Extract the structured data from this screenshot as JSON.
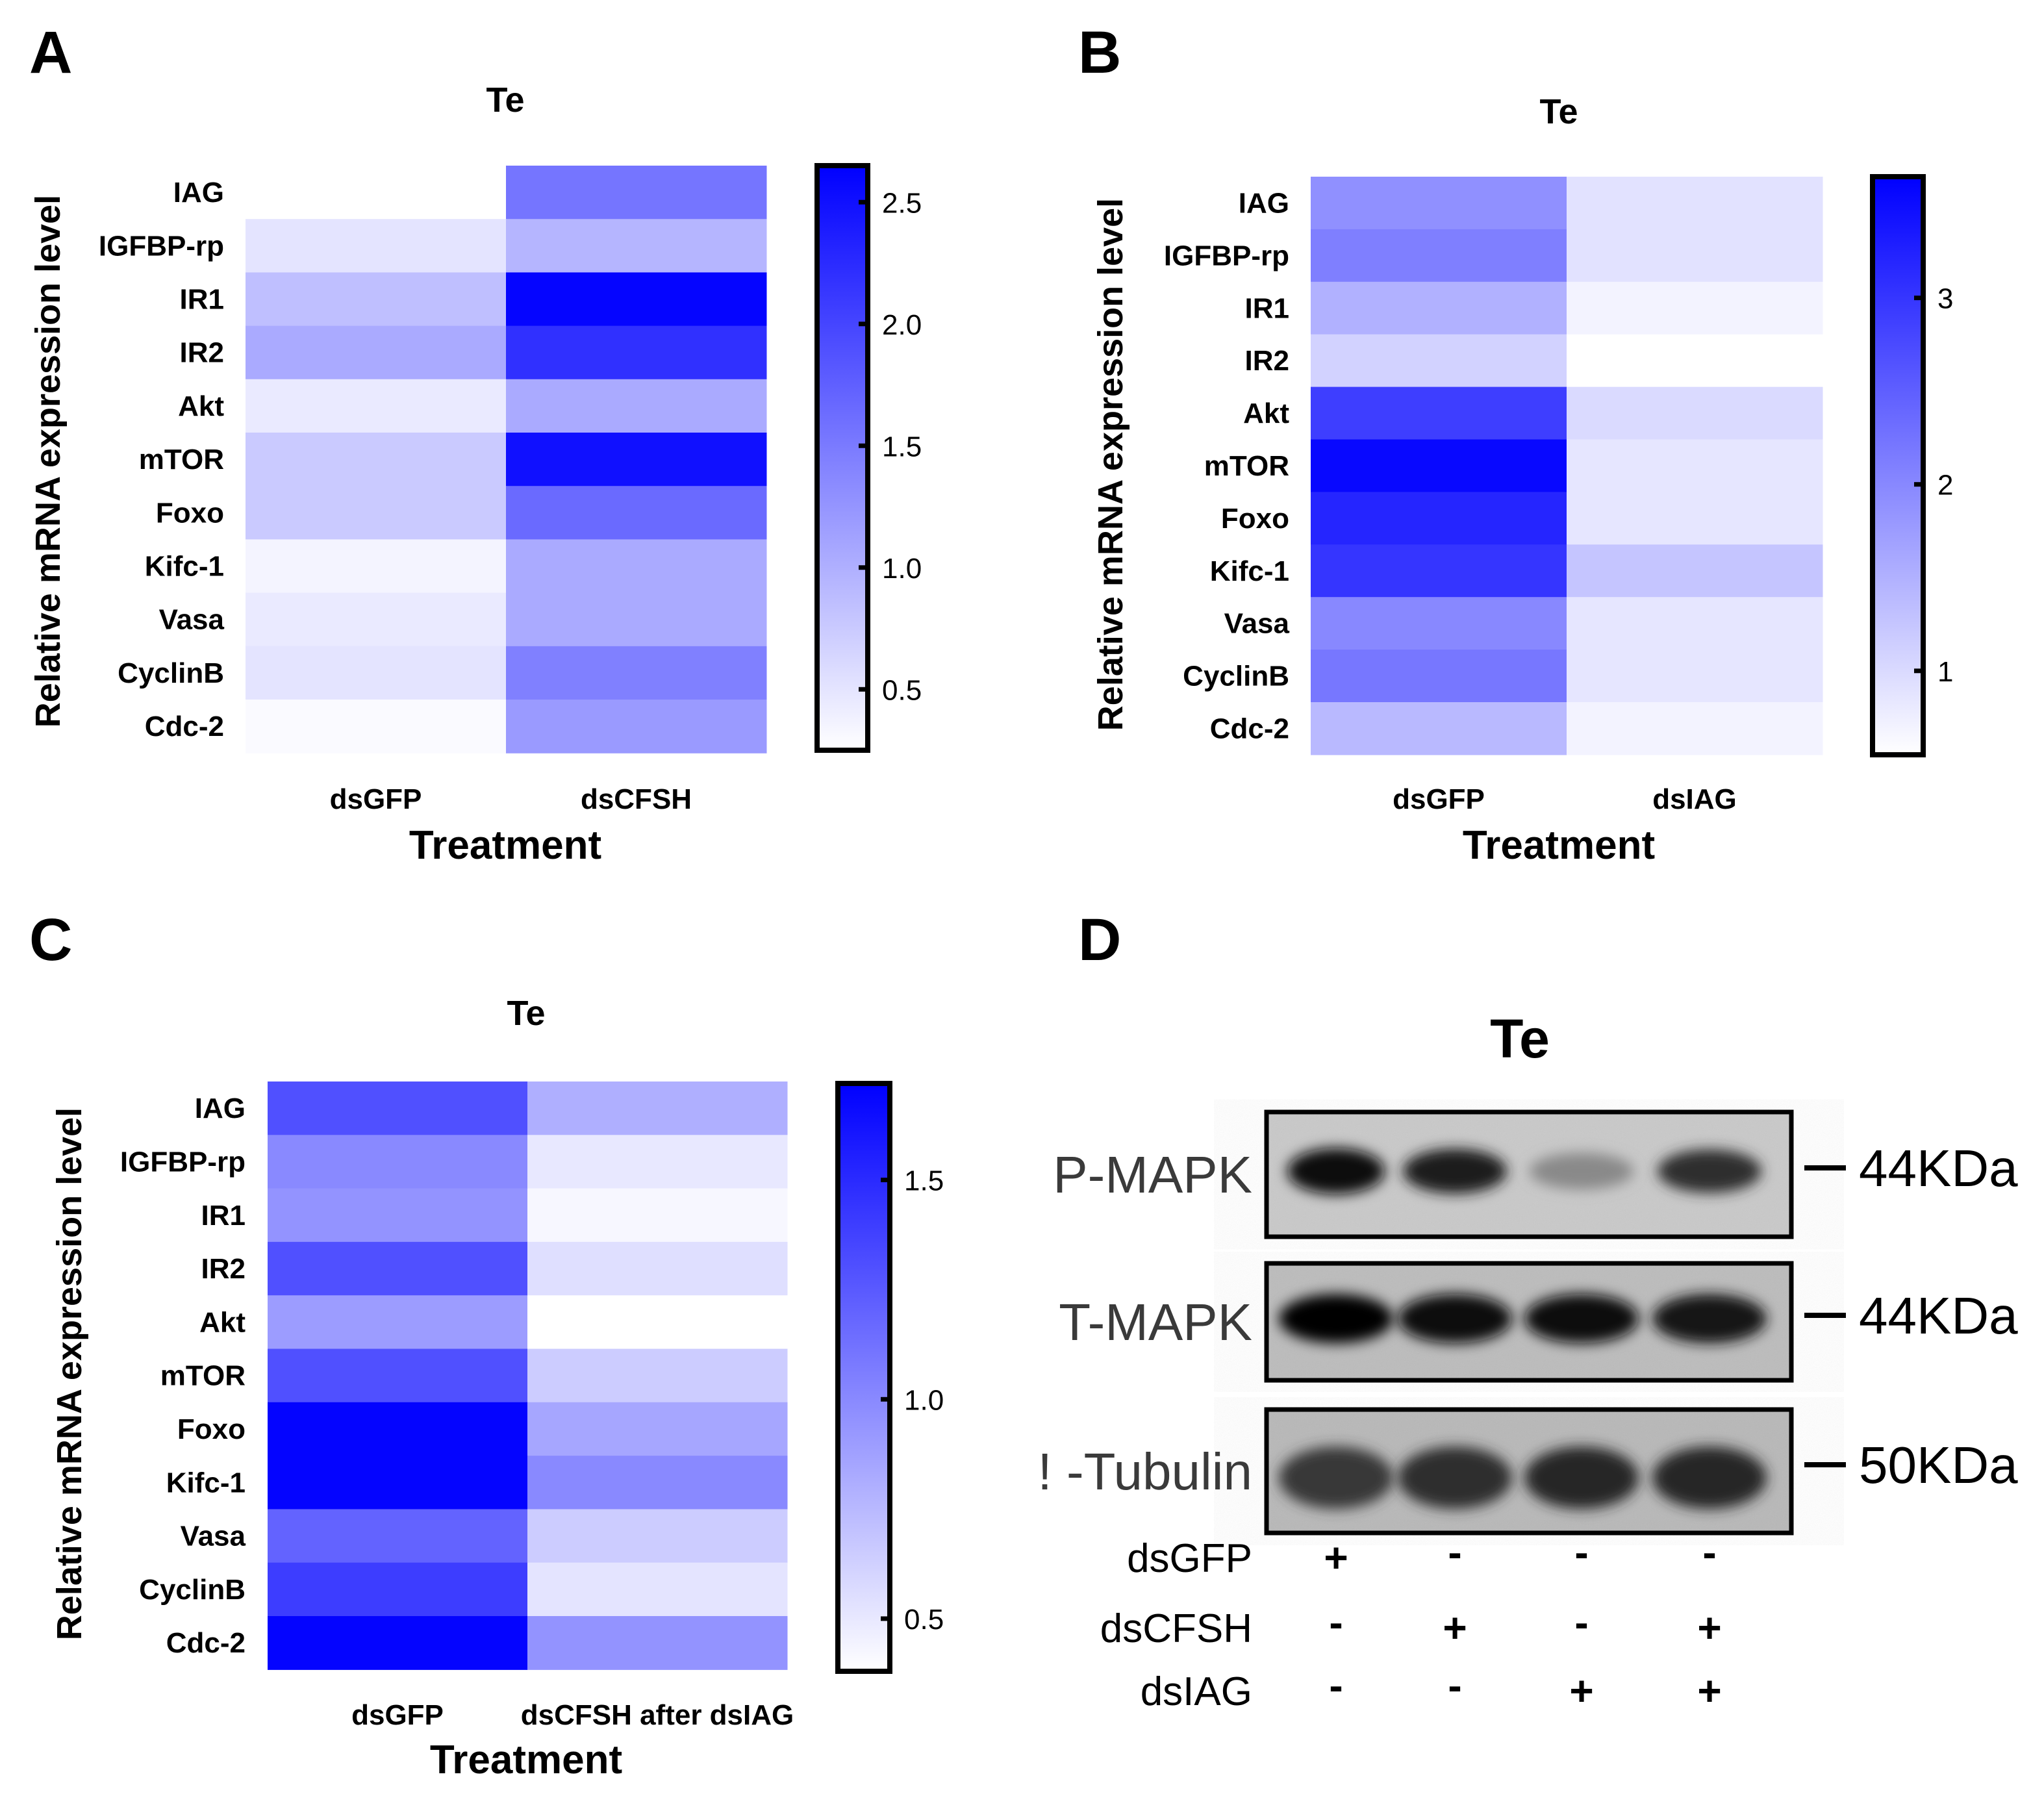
{
  "chart_data": [
    {
      "type": "heatmap",
      "panel": "A",
      "title": "Te",
      "xlabel": "Treatment",
      "ylabel": "Relative mRNA expression level",
      "categories": [
        "dsGFP",
        "dsCFSH"
      ],
      "genes": [
        "IAG",
        "IGFBP-rp",
        "IR1",
        "IR2",
        "Akt",
        "mTOR",
        "Foxo",
        "Kifc-1",
        "Vasa",
        "CyclinB",
        "Cdc-2"
      ],
      "values": [
        [
          0.2,
          1.55
        ],
        [
          0.5,
          0.95
        ],
        [
          0.85,
          2.6
        ],
        [
          1.05,
          2.2
        ],
        [
          0.45,
          1.05
        ],
        [
          0.75,
          2.5
        ],
        [
          0.75,
          1.65
        ],
        [
          0.35,
          1.05
        ],
        [
          0.45,
          1.05
        ],
        [
          0.5,
          1.45
        ],
        [
          0.3,
          1.2
        ]
      ],
      "colorbar": {
        "min": 0.25,
        "max": 2.65,
        "ticks": [
          "0.5",
          "1.0",
          "1.5",
          "2.0",
          "2.5"
        ],
        "tick_values": [
          0.5,
          1.0,
          1.5,
          2.0,
          2.5
        ]
      }
    },
    {
      "type": "heatmap",
      "panel": "B",
      "title": "Te",
      "xlabel": "Treatment",
      "ylabel": "Relative mRNA expression level",
      "categories": [
        "dsGFP",
        "dsIAG"
      ],
      "genes": [
        "IAG",
        "IGFBP-rp",
        "IR1",
        "IR2",
        "Akt",
        "mTOR",
        "Foxo",
        "Kifc-1",
        "Vasa",
        "CyclinB",
        "Cdc-2"
      ],
      "values": [
        [
          1.9,
          0.9
        ],
        [
          2.1,
          0.9
        ],
        [
          1.5,
          0.7
        ],
        [
          1.1,
          0.55
        ],
        [
          2.9,
          1.0
        ],
        [
          3.55,
          0.85
        ],
        [
          3.2,
          0.85
        ],
        [
          3.0,
          1.25
        ],
        [
          2.0,
          0.85
        ],
        [
          2.2,
          0.85
        ],
        [
          1.4,
          0.7
        ]
      ],
      "colorbar": {
        "min": 0.55,
        "max": 3.65,
        "ticks": [
          "1",
          "2",
          "3"
        ],
        "tick_values": [
          1,
          2,
          3
        ]
      }
    },
    {
      "type": "heatmap",
      "panel": "C",
      "title": "Te",
      "xlabel": "Treatment",
      "ylabel": "Relative mRNA expression level",
      "categories": [
        "dsGFP",
        "dsCFSH after dsIAG"
      ],
      "genes": [
        "IAG",
        "IGFBP-rp",
        "IR1",
        "IR2",
        "Akt",
        "mTOR",
        "Foxo",
        "Kifc-1",
        "Vasa",
        "CyclinB",
        "Cdc-2"
      ],
      "values": [
        [
          1.3,
          0.8
        ],
        [
          1.0,
          0.5
        ],
        [
          0.95,
          0.42
        ],
        [
          1.3,
          0.55
        ],
        [
          0.9,
          0.38
        ],
        [
          1.3,
          0.65
        ],
        [
          1.7,
          0.85
        ],
        [
          1.7,
          1.0
        ],
        [
          1.2,
          0.65
        ],
        [
          1.4,
          0.52
        ],
        [
          1.7,
          0.95
        ]
      ],
      "colorbar": {
        "min": 0.38,
        "max": 1.72,
        "ticks": [
          "0.5",
          "1.0",
          "1.5"
        ],
        "tick_values": [
          0.5,
          1.0,
          1.5
        ]
      }
    }
  ],
  "panels": {
    "A": {
      "letter": "A",
      "title": "Te",
      "x_title": "Treatment",
      "y_title": "Relative mRNA expression level"
    },
    "B": {
      "letter": "B",
      "title": "Te",
      "x_title": "Treatment",
      "y_title": "Relative mRNA expression level"
    },
    "C": {
      "letter": "C",
      "title": "Te",
      "x_title": "Treatment",
      "y_title": "Relative mRNA expression level"
    },
    "D": {
      "letter": "D",
      "title": "Te",
      "blots": [
        {
          "protein": "P-MAPK",
          "size": "44KDa",
          "band_intensity": [
            0.95,
            0.85,
            0.2,
            0.75
          ]
        },
        {
          "protein": "T-MAPK",
          "size": "44KDa",
          "band_intensity": [
            1.0,
            0.95,
            0.95,
            0.9
          ]
        },
        {
          "protein": "! -Tubulin",
          "size": "50KDa",
          "band_intensity": [
            0.7,
            0.75,
            0.8,
            0.8
          ]
        }
      ],
      "treatments": [
        {
          "name": "dsGFP",
          "signs": [
            "+",
            "-",
            "-",
            "-"
          ]
        },
        {
          "name": "dsCFSH",
          "signs": [
            "-",
            "+",
            "-",
            "+"
          ]
        },
        {
          "name": "dsIAG",
          "signs": [
            "-",
            "-",
            "+",
            "+"
          ]
        }
      ]
    }
  },
  "colors": {
    "high": "#0000ff",
    "low": "#ffffff",
    "frame": "#000000"
  }
}
